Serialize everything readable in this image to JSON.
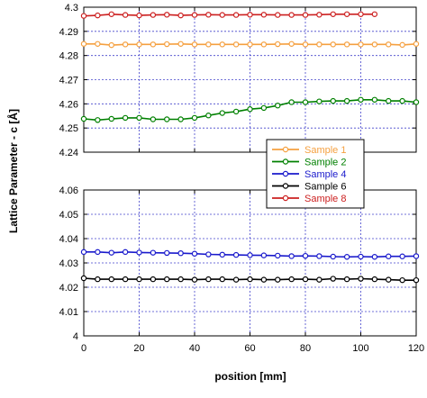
{
  "chart_data": {
    "type": "line",
    "xlabel": "position [mm]",
    "ylabel": "Lattice Parameter - c [Å]",
    "grid": true,
    "legend_placement": "center-right",
    "x_ticks": [
      0,
      20,
      40,
      60,
      80,
      100,
      120
    ],
    "xlim": [
      0,
      120
    ],
    "panels": [
      {
        "ylim": [
          4.24,
          4.3
        ],
        "y_ticks": [
          "4.24",
          "4.25",
          "4.26",
          "4.27",
          "4.28",
          "4.29",
          "4.3"
        ],
        "series": [
          "sample1",
          "sample2",
          "sample8"
        ]
      },
      {
        "ylim": [
          4.0,
          4.06
        ],
        "y_ticks": [
          "4",
          "4.01",
          "4.02",
          "4.03",
          "4.04",
          "4.05",
          "4.06"
        ],
        "series": [
          "sample4",
          "sample6"
        ]
      }
    ],
    "series": {
      "sample1": {
        "name": "Sample 1",
        "color": "#f5a040",
        "x": [
          0,
          5,
          10,
          15,
          20,
          25,
          30,
          35,
          40,
          45,
          50,
          55,
          60,
          65,
          70,
          75,
          80,
          85,
          90,
          95,
          100,
          105,
          110,
          115,
          120
        ],
        "y": [
          4.2848,
          4.2848,
          4.2843,
          4.2846,
          4.2846,
          4.2846,
          4.2847,
          4.2848,
          4.2846,
          4.2846,
          4.2846,
          4.2846,
          4.2846,
          4.2846,
          4.2847,
          4.2848,
          4.2846,
          4.2846,
          4.2846,
          4.2846,
          4.2846,
          4.2846,
          4.2846,
          4.2844,
          4.2848
        ]
      },
      "sample2": {
        "name": "Sample 2",
        "color": "#008000",
        "x": [
          0,
          5,
          10,
          15,
          20,
          25,
          30,
          35,
          40,
          45,
          50,
          55,
          60,
          65,
          70,
          75,
          80,
          85,
          90,
          95,
          100,
          105,
          110,
          115,
          120
        ],
        "y": [
          4.2538,
          4.2533,
          4.2538,
          4.2542,
          4.2542,
          4.2536,
          4.2536,
          4.2536,
          4.2542,
          4.2552,
          4.2562,
          4.2568,
          4.2578,
          4.2583,
          4.2593,
          4.2607,
          4.2607,
          4.261,
          4.2612,
          4.2612,
          4.2617,
          4.2617,
          4.2612,
          4.2612,
          4.2607
        ]
      },
      "sample4": {
        "name": "Sample 4",
        "color": "#1a1acc",
        "x": [
          0,
          5,
          10,
          15,
          20,
          25,
          30,
          35,
          40,
          45,
          50,
          55,
          60,
          65,
          70,
          75,
          80,
          85,
          90,
          95,
          100,
          105,
          110,
          115,
          120
        ],
        "y": [
          4.0345,
          4.0345,
          4.0342,
          4.0345,
          4.0343,
          4.0342,
          4.0341,
          4.034,
          4.0338,
          4.0335,
          4.0334,
          4.0333,
          4.0332,
          4.0331,
          4.033,
          4.0328,
          4.0329,
          4.0328,
          4.0326,
          4.0325,
          4.0326,
          4.0325,
          4.0327,
          4.0327,
          4.0328
        ]
      },
      "sample6": {
        "name": "Sample 6",
        "color": "#000000",
        "x": [
          0,
          5,
          10,
          15,
          20,
          25,
          30,
          35,
          40,
          45,
          50,
          55,
          60,
          65,
          70,
          75,
          80,
          85,
          90,
          95,
          100,
          105,
          110,
          115,
          120
        ],
        "y": [
          4.0237,
          4.0233,
          4.0233,
          4.0233,
          4.0233,
          4.0233,
          4.0233,
          4.0233,
          4.0231,
          4.0233,
          4.0233,
          4.0231,
          4.0233,
          4.0231,
          4.0231,
          4.0233,
          4.0233,
          4.0231,
          4.0235,
          4.0233,
          4.0235,
          4.0233,
          4.0231,
          4.0229,
          4.0229
        ]
      },
      "sample8": {
        "name": "Sample 8",
        "color": "#cc2020",
        "x": [
          0,
          5,
          10,
          15,
          20,
          25,
          30,
          35,
          40,
          45,
          50,
          55,
          60,
          65,
          70,
          75,
          80,
          85,
          90,
          95,
          100,
          105
        ],
        "y": [
          4.2964,
          4.2966,
          4.2971,
          4.2968,
          4.2966,
          4.2968,
          4.2969,
          4.2966,
          4.2968,
          4.2969,
          4.2968,
          4.2968,
          4.2969,
          4.2969,
          4.2968,
          4.2968,
          4.2968,
          4.2969,
          4.2971,
          4.2971,
          4.2971,
          4.2971
        ]
      }
    },
    "legend": [
      "sample1",
      "sample2",
      "sample4",
      "sample6",
      "sample8"
    ]
  }
}
